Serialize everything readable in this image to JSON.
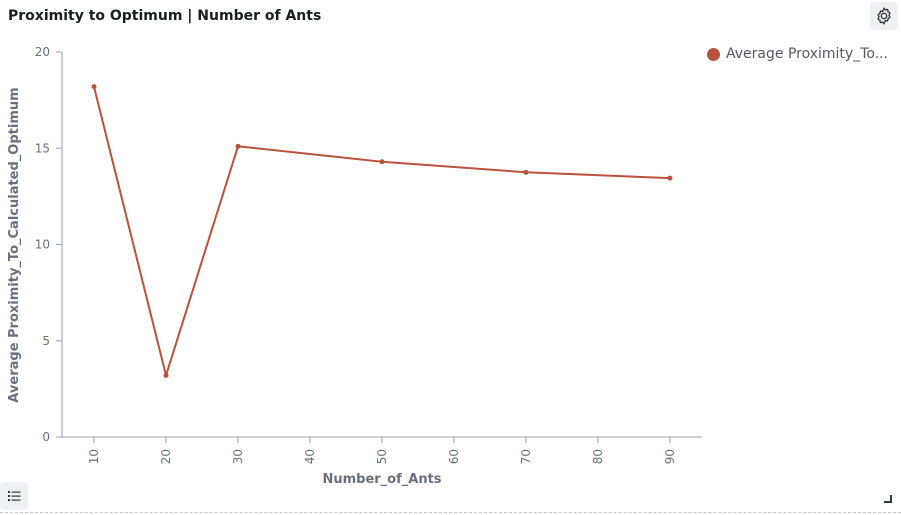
{
  "panel": {
    "title": "Proximity to Optimum | Number of Ants"
  },
  "icons": {
    "settings": "gear-icon",
    "legend_toggle": "list-icon"
  },
  "colors": {
    "series": "#b9533d",
    "axis": "#98a2b3",
    "tick_label": "#69707d",
    "axis_title": "#69707d"
  },
  "legend": {
    "label": "Average Proximity_To..."
  },
  "chart_data": {
    "type": "line",
    "xlabel": "Number_of_Ants",
    "ylabel": "Average Proximity_To_Calculated_Optimum",
    "x_ticks": [
      "10",
      "20",
      "30",
      "40",
      "50",
      "60",
      "70",
      "80",
      "90"
    ],
    "y_ticks": [
      "0",
      "5",
      "10",
      "15",
      "20"
    ],
    "xlim": [
      10,
      90
    ],
    "ylim": [
      0,
      20
    ],
    "grid": false,
    "legend_position": "top-right",
    "series": [
      {
        "name": "Average Proximity_To_Calculated_Optimum",
        "x": [
          10,
          20,
          30,
          50,
          70,
          90
        ],
        "y": [
          18.2,
          3.2,
          15.1,
          14.3,
          13.75,
          13.45
        ]
      }
    ]
  }
}
